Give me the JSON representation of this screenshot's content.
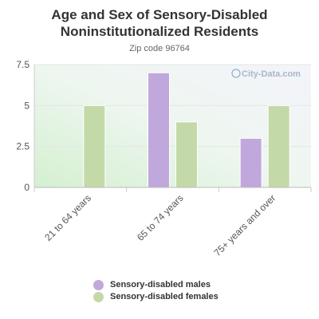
{
  "chart_data": {
    "type": "bar",
    "title_lines": [
      "Age and Sex of Sensory-Disabled",
      "Noninstitutionalized Residents"
    ],
    "subtitle": "Zip code 96764",
    "categories": [
      "21 to 64 years",
      "65 to 74 years",
      "75+ years and over"
    ],
    "series": [
      {
        "name": "Sensory-disabled males",
        "values": [
          0,
          7,
          3
        ],
        "color": "#c0a8dc"
      },
      {
        "name": "Sensory-disabled females",
        "values": [
          5,
          4,
          5
        ],
        "color": "#c4d9a8"
      }
    ],
    "y_ticks": [
      "0",
      "2.5",
      "5",
      "7.5"
    ],
    "y_tick_values": [
      0,
      2.5,
      5,
      7.5
    ],
    "ylim": [
      0,
      7.5
    ],
    "grid": true,
    "legend_position": "bottom",
    "watermark": "City-Data.com"
  }
}
